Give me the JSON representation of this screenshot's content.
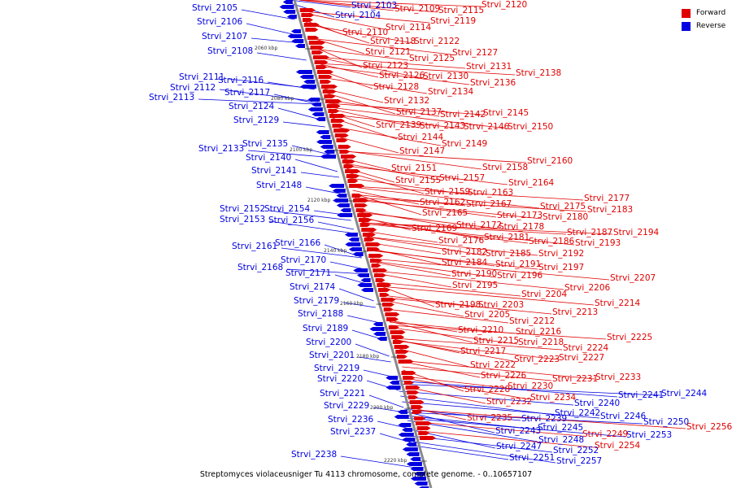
{
  "legend": {
    "forward_label": "Forward",
    "reverse_label": "Reverse",
    "forward_color": "#e00000",
    "reverse_color": "#0000e0"
  },
  "caption": "Streptomyces violaceusniger Tu 4113 chromosome, complete genome. - 0..10657107",
  "ticks": [
    "2060 kbp",
    "2080 kbp",
    "2100 kbp",
    "2120 kbp",
    "2140 kbp",
    "2160 kbp",
    "2180 kbp",
    "2200 kbp",
    "2220 kbp"
  ],
  "reverse_labels": [
    "Strvi_2103",
    "Strvi_2104",
    "Strvi_2105",
    "Strvi_2106",
    "Strvi_2107",
    "Strvi_2108",
    "Strvi_2111",
    "Strvi_2112",
    "Strvi_2113",
    "Strvi_2116",
    "Strvi_2117",
    "Strvi_2124",
    "Strvi_2129",
    "Strvi_2133",
    "Strvi_2135",
    "Strvi_2140",
    "Strvi_2141",
    "Strvi_2148",
    "Strvi_2152",
    "Strvi_2153",
    "Strvi_2154",
    "Strvi_2156",
    "Strvi_2161",
    "Strvi_2166",
    "Strvi_2168",
    "Strvi_2170",
    "Strvi_2171",
    "Strvi_2174",
    "Strvi_2179",
    "Strvi_2188",
    "Strvi_2189",
    "Strvi_2200",
    "Strvi_2201",
    "Strvi_2219",
    "Strvi_2220",
    "Strvi_2221",
    "Strvi_2229",
    "Strvi_2236",
    "Strvi_2237",
    "Strvi_2238",
    "Strvi_2239",
    "Strvi_2240",
    "Strvi_2241",
    "Strvi_2242",
    "Strvi_2243",
    "Strvi_2244",
    "Strvi_2245",
    "Strvi_2246",
    "Strvi_2247",
    "Strvi_2248",
    "Strvi_2250",
    "Strvi_2251",
    "Strvi_2252",
    "Strvi_2253",
    "Strvi_2257"
  ],
  "forward_labels": [
    "Strvi_2109",
    "Strvi_2110",
    "Strvi_2114",
    "Strvi_2115",
    "Strvi_2118",
    "Strvi_2119",
    "Strvi_2120",
    "Strvi_2121",
    "Strvi_2122",
    "Strvi_2123",
    "Strvi_2125",
    "Strvi_2126",
    "Strvi_2127",
    "Strvi_2128",
    "Strvi_2130",
    "Strvi_2131",
    "Strvi_2132",
    "Strvi_2134",
    "Strvi_2136",
    "Strvi_2137",
    "Strvi_2138",
    "Strvi_2139",
    "Strvi_2142",
    "Strvi_2143",
    "Strvi_2144",
    "Strvi_2145",
    "Strvi_2146",
    "Strvi_2147",
    "Strvi_2149",
    "Strvi_2150",
    "Strvi_2151",
    "Strvi_2155",
    "Strvi_2157",
    "Strvi_2158",
    "Strvi_2159",
    "Strvi_2160",
    "Strvi_2162",
    "Strvi_2163",
    "Strvi_2164",
    "Strvi_2165",
    "Strvi_2167",
    "Strvi_2169",
    "Strvi_2172",
    "Strvi_2173",
    "Strvi_2175",
    "Strvi_2176",
    "Strvi_2177",
    "Strvi_2178",
    "Strvi_2180",
    "Strvi_2181",
    "Strvi_2182",
    "Strvi_2183",
    "Strvi_2184",
    "Strvi_2185",
    "Strvi_2186",
    "Strvi_2187",
    "Strvi_2190",
    "Strvi_2191",
    "Strvi_2192",
    "Strvi_2193",
    "Strvi_2194",
    "Strvi_2195",
    "Strvi_2196",
    "Strvi_2197",
    "Strvi_2198",
    "Strvi_2203",
    "Strvi_2204",
    "Strvi_2205",
    "Strvi_2206",
    "Strvi_2207",
    "Strvi_2210",
    "Strvi_2212",
    "Strvi_2213",
    "Strvi_2214",
    "Strvi_2215",
    "Strvi_2216",
    "Strvi_2217",
    "Strvi_2218",
    "Strvi_2222",
    "Strvi_2223",
    "Strvi_2224",
    "Strvi_2225",
    "Strvi_2226",
    "Strvi_2227",
    "Strvi_2228",
    "Strvi_2230",
    "Strvi_2231",
    "Strvi_2232",
    "Strvi_2233",
    "Strvi_2234",
    "Strvi_2235",
    "Strvi_2249",
    "Strvi_2254",
    "Strvi_2256"
  ]
}
